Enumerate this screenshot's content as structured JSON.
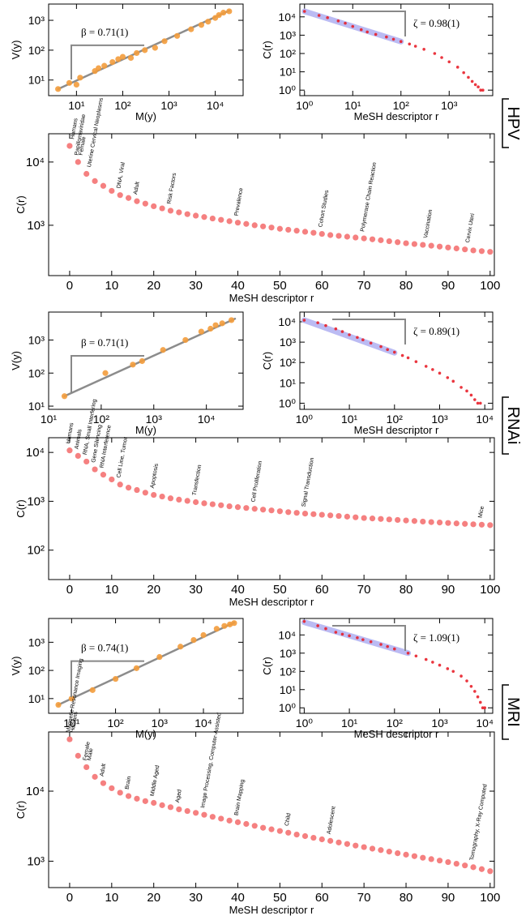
{
  "groups": [
    "HPV",
    "RNAi",
    "MRI"
  ],
  "chart_data": [
    {
      "type": "scatter",
      "xscale": "log",
      "yscale": "log",
      "xlabel": "M(y)",
      "ylabel": "V(y)",
      "annotation": "β = 0.71(1)",
      "color": "#f39c3c",
      "x": [
        4,
        7,
        10,
        12,
        25,
        30,
        40,
        60,
        80,
        100,
        150,
        200,
        300,
        500,
        800,
        1500,
        3000,
        5000,
        7000,
        10000,
        12000,
        15000,
        20000
      ],
      "values": [
        5,
        8,
        7,
        12,
        20,
        25,
        30,
        40,
        50,
        60,
        55,
        80,
        100,
        120,
        200,
        300,
        500,
        700,
        900,
        1200,
        1500,
        1800,
        2000
      ],
      "fit": {
        "color": "#808080",
        "x": [
          4,
          20000
        ],
        "values": [
          5,
          2100
        ]
      },
      "xlim": [
        2.5,
        40000
      ],
      "ylim": [
        3,
        3500
      ],
      "xticks": [
        {
          "value": 10,
          "label": "10¹"
        },
        {
          "value": 100,
          "label": "10²"
        },
        {
          "value": 1000,
          "label": "10³"
        },
        {
          "value": 10000,
          "label": "10⁴"
        }
      ],
      "yticks": [
        {
          "value": 10,
          "label": "10¹"
        },
        {
          "value": 100,
          "label": "10²"
        },
        {
          "value": 1000,
          "label": "10³"
        }
      ]
    },
    {
      "type": "scatter",
      "xscale": "log",
      "yscale": "log",
      "xlabel": "MeSH descriptor r",
      "ylabel": "C(r)",
      "annotation": "ζ = 0.98(1)",
      "color": "#e8202a",
      "x": [
        1,
        2,
        3,
        5,
        7,
        10,
        15,
        20,
        30,
        50,
        70,
        100,
        150,
        200,
        300,
        500,
        700,
        1000,
        1500,
        2000,
        2500,
        3000,
        3500,
        4000,
        4500,
        5000
      ],
      "values": [
        20000,
        12000,
        9000,
        6000,
        4500,
        3000,
        2000,
        1500,
        1100,
        800,
        600,
        450,
        330,
        250,
        170,
        100,
        60,
        35,
        18,
        9,
        5,
        3,
        2,
        1.5,
        1,
        1
      ],
      "fit": {
        "color": "#b4b4f2",
        "x": [
          1,
          100
        ],
        "values": [
          20000,
          450
        ]
      },
      "xlim": [
        0.8,
        8000
      ],
      "ylim": [
        0.5,
        50000
      ],
      "xticks": [
        {
          "value": 1,
          "label": "10⁰"
        },
        {
          "value": 10,
          "label": "10¹"
        },
        {
          "value": 100,
          "label": "10²"
        },
        {
          "value": 1000,
          "label": "10³"
        }
      ],
      "yticks": [
        {
          "value": 1,
          "label": "10⁰"
        },
        {
          "value": 10,
          "label": "10¹"
        },
        {
          "value": 100,
          "label": "10²"
        },
        {
          "value": 1000,
          "label": "10³"
        },
        {
          "value": 10000,
          "label": "10⁴"
        }
      ]
    },
    {
      "type": "scatter",
      "xscale": "linear",
      "yscale": "log",
      "xlabel": "MeSH descriptor r",
      "ylabel": "C(r)",
      "color": "#f26060",
      "x": [
        0,
        2,
        4,
        6,
        8,
        10,
        12,
        14,
        16,
        18,
        20,
        22,
        24,
        26,
        28,
        30,
        32,
        34,
        36,
        38,
        40,
        42,
        44,
        46,
        48,
        50,
        52,
        54,
        56,
        58,
        60,
        62,
        64,
        66,
        68,
        70,
        72,
        74,
        76,
        78,
        80,
        82,
        84,
        86,
        88,
        90,
        92,
        94,
        96,
        98,
        100
      ],
      "values": [
        18000,
        10000,
        6500,
        5000,
        4200,
        3500,
        3000,
        2700,
        2400,
        2200,
        2000,
        1850,
        1700,
        1600,
        1500,
        1420,
        1350,
        1280,
        1220,
        1160,
        1100,
        1050,
        1000,
        960,
        920,
        880,
        850,
        820,
        790,
        760,
        730,
        700,
        680,
        660,
        640,
        620,
        600,
        580,
        560,
        540,
        520,
        505,
        490,
        475,
        460,
        445,
        430,
        415,
        400,
        390,
        380
      ],
      "labels": [
        {
          "x": 1,
          "text": "Humans"
        },
        {
          "x": 2,
          "text": "Papillomaviridae"
        },
        {
          "x": 3,
          "text": "Female"
        },
        {
          "x": 5,
          "text": "Uterine Cervical Neoplasms"
        },
        {
          "x": 12,
          "text": "DNA, Viral"
        },
        {
          "x": 16,
          "text": "Adult"
        },
        {
          "x": 24,
          "text": "Risk Factors"
        },
        {
          "x": 40,
          "text": "Prevalence"
        },
        {
          "x": 60,
          "text": "Cohort Studies"
        },
        {
          "x": 70,
          "text": "Polymerase Chain Reaction"
        },
        {
          "x": 85,
          "text": "Vaccination"
        },
        {
          "x": 95,
          "text": "Cervix Uteri"
        }
      ],
      "xlim": [
        -5,
        101
      ],
      "ylim": [
        160,
        28000
      ],
      "xticks": [
        0,
        10,
        20,
        30,
        40,
        50,
        60,
        70,
        80,
        90,
        100
      ],
      "yticks": [
        {
          "value": 1000,
          "label": "10³"
        },
        {
          "value": 10000,
          "label": "10⁴"
        }
      ]
    },
    {
      "type": "scatter",
      "xscale": "log",
      "yscale": "log",
      "xlabel": "M(y)",
      "ylabel": "V(y)",
      "annotation": "β = 0.71(1)",
      "color": "#f39c3c",
      "x": [
        20,
        120,
        400,
        600,
        1500,
        4000,
        8000,
        12000,
        15000,
        20000,
        30000
      ],
      "values": [
        20,
        100,
        180,
        230,
        500,
        1000,
        1800,
        2200,
        2800,
        3200,
        4000
      ],
      "fit": {
        "color": "#808080",
        "x": [
          20,
          35000
        ],
        "values": [
          20,
          4400
        ]
      },
      "xlim": [
        10,
        50000
      ],
      "ylim": [
        8,
        7000
      ],
      "xticks": [
        {
          "value": 10,
          "label": "10¹"
        },
        {
          "value": 100,
          "label": "10²"
        },
        {
          "value": 1000,
          "label": "10³"
        },
        {
          "value": 10000,
          "label": "10⁴"
        }
      ],
      "yticks": [
        {
          "value": 10,
          "label": "10¹"
        },
        {
          "value": 100,
          "label": "10²"
        },
        {
          "value": 1000,
          "label": "10³"
        }
      ]
    },
    {
      "type": "scatter",
      "xscale": "log",
      "yscale": "log",
      "xlabel": "MeSH descriptor r",
      "ylabel": "C(r)",
      "annotation": "ζ = 0.89(1)",
      "color": "#e8202a",
      "x": [
        1,
        2,
        3,
        5,
        7,
        10,
        15,
        20,
        30,
        50,
        70,
        100,
        150,
        200,
        300,
        500,
        700,
        1000,
        1500,
        2000,
        3000,
        4000,
        5000,
        6000,
        7000,
        8000
      ],
      "values": [
        12000,
        9000,
        6500,
        4500,
        3300,
        2300,
        1700,
        1300,
        900,
        600,
        430,
        320,
        220,
        170,
        110,
        65,
        45,
        30,
        18,
        12,
        6,
        4,
        2.5,
        1.5,
        1,
        1
      ],
      "fit": {
        "color": "#b4b4f2",
        "x": [
          1,
          100
        ],
        "values": [
          12000,
          300
        ]
      },
      "xlim": [
        0.8,
        15000
      ],
      "ylim": [
        0.5,
        30000
      ],
      "xticks": [
        {
          "value": 1,
          "label": "10⁰"
        },
        {
          "value": 10,
          "label": "10¹"
        },
        {
          "value": 100,
          "label": "10²"
        },
        {
          "value": 1000,
          "label": "10³"
        },
        {
          "value": 10000,
          "label": "10⁴"
        }
      ],
      "yticks": [
        {
          "value": 1,
          "label": "10⁰"
        },
        {
          "value": 10,
          "label": "10¹"
        },
        {
          "value": 100,
          "label": "10²"
        },
        {
          "value": 1000,
          "label": "10³"
        },
        {
          "value": 10000,
          "label": "10⁴"
        }
      ]
    },
    {
      "type": "scatter",
      "xscale": "linear",
      "yscale": "log",
      "xlabel": "MeSH descriptor r",
      "ylabel": "C(r)",
      "color": "#f26060",
      "x": [
        0,
        2,
        4,
        6,
        8,
        10,
        12,
        14,
        16,
        18,
        20,
        22,
        24,
        26,
        28,
        30,
        32,
        34,
        36,
        38,
        40,
        42,
        44,
        46,
        48,
        50,
        52,
        54,
        56,
        58,
        60,
        62,
        64,
        66,
        68,
        70,
        72,
        74,
        76,
        78,
        80,
        82,
        84,
        86,
        88,
        90,
        92,
        94,
        96,
        98,
        100
      ],
      "values": [
        11000,
        8500,
        6500,
        4500,
        3500,
        2800,
        2200,
        1900,
        1700,
        1500,
        1350,
        1250,
        1150,
        1080,
        1020,
        960,
        910,
        870,
        830,
        790,
        760,
        730,
        700,
        675,
        650,
        625,
        600,
        580,
        560,
        545,
        530,
        515,
        500,
        485,
        470,
        455,
        445,
        435,
        425,
        415,
        405,
        395,
        385,
        375,
        368,
        360,
        352,
        345,
        338,
        332,
        325
      ],
      "labels": [
        {
          "x": 0,
          "text": "Humans"
        },
        {
          "x": 2,
          "text": "Animals"
        },
        {
          "x": 4,
          "text": "RNA, Small Interfering"
        },
        {
          "x": 6,
          "text": "Gene Silencing"
        },
        {
          "x": 8,
          "text": "RNA Interference"
        },
        {
          "x": 12,
          "text": "Cell Line, Tumor"
        },
        {
          "x": 20,
          "text": "Apoptosis"
        },
        {
          "x": 30,
          "text": "Transfection"
        },
        {
          "x": 44,
          "text": "Cell Proliferation"
        },
        {
          "x": 56,
          "text": "Signal Transduction"
        },
        {
          "x": 98,
          "text": "Mice"
        }
      ],
      "xlim": [
        -5,
        101
      ],
      "ylim": [
        25,
        20000
      ],
      "xticks": [
        0,
        10,
        20,
        30,
        40,
        50,
        60,
        70,
        80,
        90,
        100
      ],
      "yticks": [
        {
          "value": 100,
          "label": "10²"
        },
        {
          "value": 1000,
          "label": "10³"
        },
        {
          "value": 10000,
          "label": "10⁴"
        }
      ]
    },
    {
      "type": "scatter",
      "xscale": "log",
      "yscale": "log",
      "xlabel": "M(y)",
      "ylabel": "V(y)",
      "annotation": "β = 0.74(1)",
      "color": "#f39c3c",
      "x": [
        5,
        10,
        30,
        100,
        300,
        1000,
        3000,
        6000,
        10000,
        20000,
        30000,
        40000,
        50000
      ],
      "values": [
        6,
        10,
        20,
        50,
        120,
        300,
        700,
        1200,
        1800,
        3000,
        3800,
        4300,
        4800
      ],
      "fit": {
        "color": "#808080",
        "x": [
          5,
          50000
        ],
        "values": [
          6,
          5000
        ]
      },
      "xlim": [
        3,
        80000
      ],
      "ylim": [
        3,
        7000
      ],
      "xticks": [
        {
          "value": 10,
          "label": "10¹"
        },
        {
          "value": 100,
          "label": "10²"
        },
        {
          "value": 1000,
          "label": "10³"
        },
        {
          "value": 10000,
          "label": "10⁴"
        }
      ],
      "yticks": [
        {
          "value": 10,
          "label": "10¹"
        },
        {
          "value": 100,
          "label": "10²"
        },
        {
          "value": 1000,
          "label": "10³"
        }
      ]
    },
    {
      "type": "scatter",
      "xscale": "log",
      "yscale": "log",
      "xlabel": "MeSH descriptor r",
      "ylabel": "C(r)",
      "annotation": "ζ = 1.09(1)",
      "color": "#e8202a",
      "x": [
        1,
        2,
        3,
        5,
        7,
        10,
        15,
        20,
        30,
        50,
        70,
        100,
        200,
        300,
        500,
        700,
        1000,
        1500,
        2000,
        3000,
        4000,
        5000,
        6000,
        7000,
        8000,
        9000,
        10000
      ],
      "values": [
        55000,
        32000,
        22000,
        14000,
        11000,
        9000,
        7000,
        5500,
        4200,
        3000,
        2300,
        1700,
        1000,
        700,
        450,
        320,
        220,
        140,
        100,
        55,
        30,
        15,
        8,
        4,
        2,
        1,
        1
      ],
      "fit": {
        "color": "#b4b4f2",
        "x": [
          1,
          200
        ],
        "values": [
          50000,
          1000
        ]
      },
      "xlim": [
        0.8,
        15000
      ],
      "ylim": [
        0.5,
        80000
      ],
      "xticks": [
        {
          "value": 1,
          "label": "10⁰"
        },
        {
          "value": 10,
          "label": "10¹"
        },
        {
          "value": 100,
          "label": "10²"
        },
        {
          "value": 1000,
          "label": "10³"
        },
        {
          "value": 10000,
          "label": "10⁴"
        }
      ],
      "yticks": [
        {
          "value": 1,
          "label": "10⁰"
        },
        {
          "value": 10,
          "label": "10¹"
        },
        {
          "value": 100,
          "label": "10²"
        },
        {
          "value": 1000,
          "label": "10³"
        },
        {
          "value": 10000,
          "label": "10⁴"
        }
      ]
    },
    {
      "type": "scatter",
      "xscale": "linear",
      "yscale": "log",
      "xlabel": "MeSH descriptor r",
      "ylabel": "C(r)",
      "color": "#f26060",
      "x": [
        0,
        2,
        4,
        6,
        8,
        10,
        12,
        14,
        16,
        18,
        20,
        22,
        24,
        26,
        28,
        30,
        32,
        34,
        36,
        38,
        40,
        42,
        44,
        46,
        48,
        50,
        52,
        54,
        56,
        58,
        60,
        62,
        64,
        66,
        68,
        70,
        72,
        74,
        76,
        78,
        80,
        82,
        84,
        86,
        88,
        90,
        92,
        94,
        96,
        98,
        100
      ],
      "values": [
        55000,
        32000,
        22000,
        16000,
        13000,
        11000,
        9500,
        8500,
        7800,
        7200,
        6800,
        6300,
        5900,
        5500,
        5200,
        4900,
        4600,
        4300,
        4050,
        3800,
        3600,
        3400,
        3200,
        3000,
        2850,
        2700,
        2550,
        2400,
        2280,
        2160,
        2050,
        1950,
        1850,
        1760,
        1670,
        1590,
        1510,
        1440,
        1370,
        1300,
        1240,
        1180,
        1120,
        1070,
        1020,
        970,
        920,
        870,
        820,
        770,
        720
      ],
      "labels": [
        {
          "x": 0,
          "text": "Magnetic Resonance Imaging"
        },
        {
          "x": 1,
          "text": "Humans"
        },
        {
          "x": 4,
          "text": "Female"
        },
        {
          "x": 5,
          "text": "Male"
        },
        {
          "x": 8,
          "text": "Adult"
        },
        {
          "x": 14,
          "text": "Brain"
        },
        {
          "x": 20,
          "text": "Middle Aged"
        },
        {
          "x": 26,
          "text": "Aged"
        },
        {
          "x": 32,
          "text": "Image Processing, Computer-Assisted"
        },
        {
          "x": 40,
          "text": "Brain Mapping"
        },
        {
          "x": 52,
          "text": "Child"
        },
        {
          "x": 62,
          "text": "Adolescent"
        },
        {
          "x": 96,
          "text": "Tomography, X-Ray Computed"
        }
      ],
      "xlim": [
        -5,
        101
      ],
      "ylim": [
        420,
        70000
      ],
      "xticks": [
        0,
        10,
        20,
        30,
        40,
        50,
        60,
        70,
        80,
        90,
        100
      ],
      "yticks": [
        {
          "value": 1000,
          "label": "10³"
        },
        {
          "value": 10000,
          "label": "10⁴"
        }
      ]
    }
  ]
}
